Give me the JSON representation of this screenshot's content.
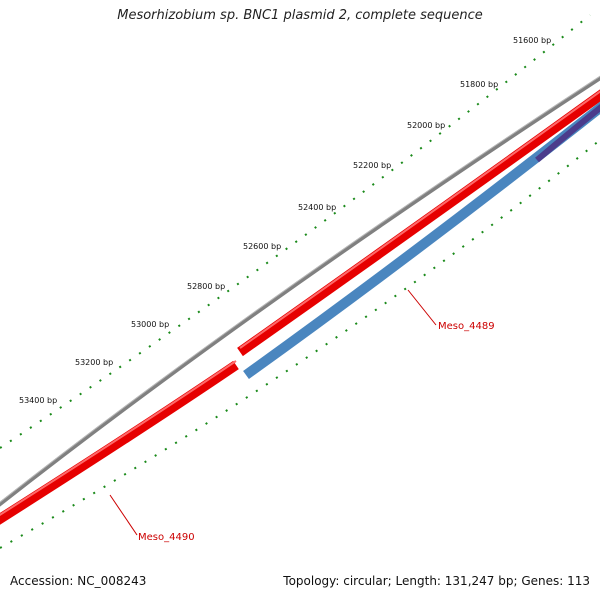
{
  "title": "Mesorhizobium sp. BNC1 plasmid 2, complete sequence",
  "footer": {
    "accession": "Accession: NC_008243",
    "summary": "Topology: circular; Length: 131,247 bp; Genes: 113"
  },
  "tick_labels": [
    "51600 bp",
    "51800 bp",
    "52000 bp",
    "52200 bp",
    "52400 bp",
    "52600 bp",
    "52800 bp",
    "53000 bp",
    "53200 bp",
    "53400 bp"
  ],
  "genes": [
    {
      "label": "Meso_4489"
    },
    {
      "label": "Meso_4490"
    }
  ],
  "colors": {
    "backbone": "#808080",
    "forward_gene": "#e60000",
    "reverse_gene": "#4a86bf",
    "reverse_gene_2": "#4b3c8c",
    "ticks": "#1a8a1a",
    "gene_label": "#cc0000"
  }
}
